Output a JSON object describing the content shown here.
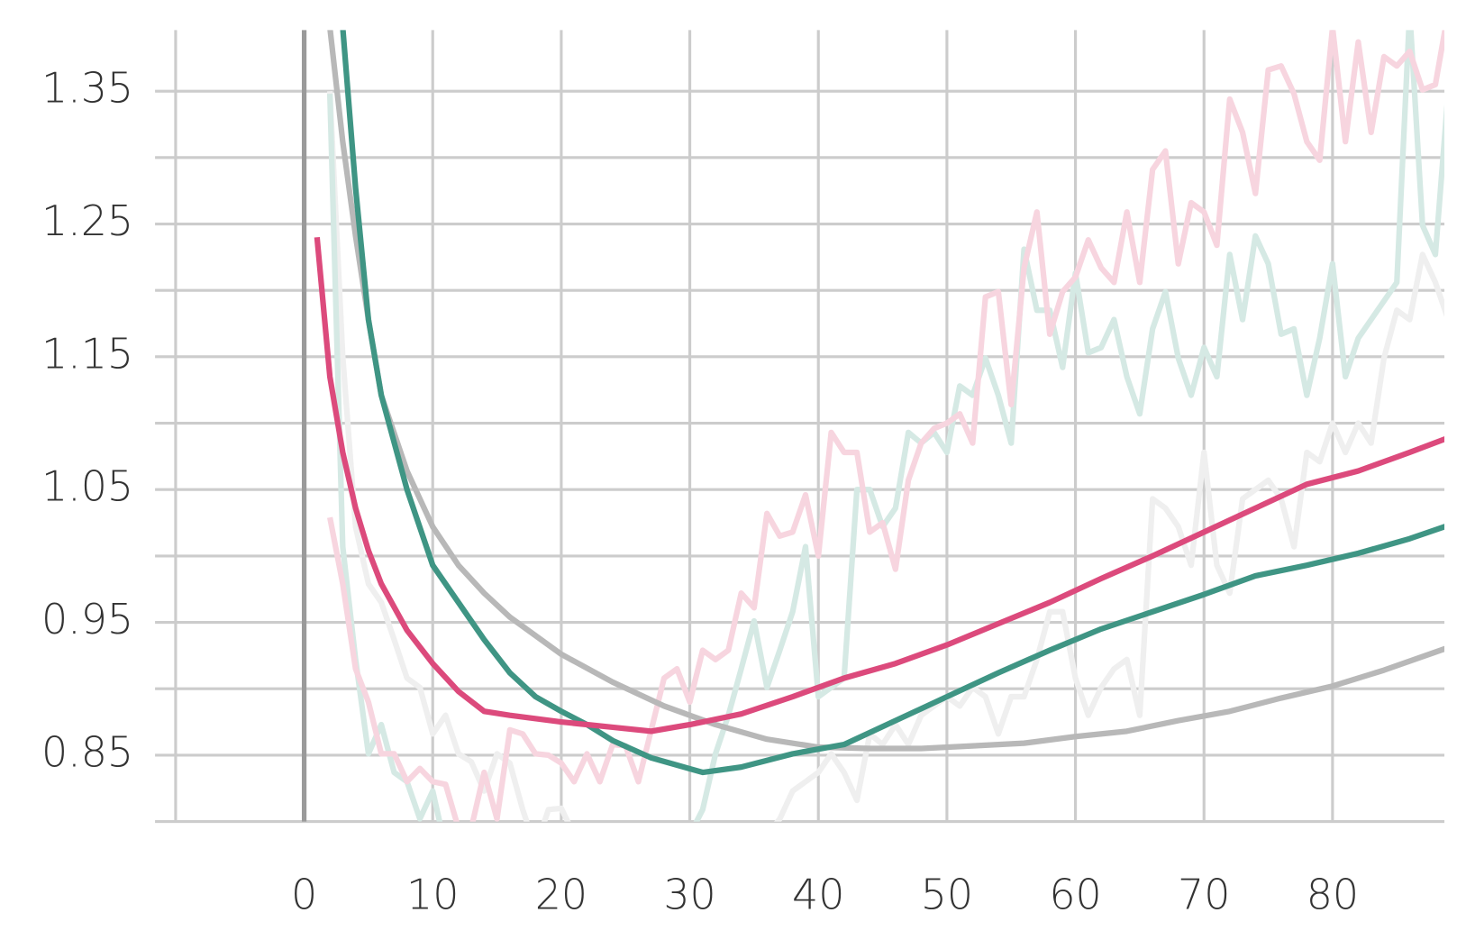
{
  "chart_data": {
    "type": "line",
    "xlim": [
      -11.6,
      88.7
    ],
    "ylim": [
      0.8,
      1.396
    ],
    "xticks": [
      0,
      10,
      20,
      30,
      40,
      50,
      60,
      70,
      80
    ],
    "xticks_minor": [
      -10
    ],
    "yticks": [
      0.85,
      0.95,
      1.05,
      1.15,
      1.25,
      1.35
    ],
    "yticks_minor": [
      0.8,
      0.9,
      1.0,
      1.1,
      1.2,
      1.3
    ],
    "grid": true,
    "zero_line": true,
    "series": [
      {
        "color": "#efefef",
        "x": [
          2,
          3,
          4,
          5,
          6,
          7,
          8,
          9,
          10,
          11,
          12,
          13,
          14,
          15,
          16,
          17,
          18,
          19,
          20,
          21,
          22,
          23,
          24,
          25,
          26,
          27,
          28,
          29,
          30,
          31,
          32,
          33,
          34,
          35,
          36,
          37,
          38,
          39,
          40,
          41,
          42,
          43,
          44,
          45,
          46,
          47,
          48,
          49,
          50,
          51,
          52,
          53,
          54,
          55,
          56,
          57,
          58,
          59,
          60,
          61,
          62,
          63,
          64,
          65,
          66,
          67,
          68,
          69,
          70,
          71,
          72,
          73,
          74,
          75,
          76,
          77,
          78,
          79,
          80,
          81,
          82,
          83,
          84,
          85,
          86,
          87,
          88,
          89
        ],
        "values": [
          1.35,
          1.15,
          1.022,
          0.979,
          0.965,
          0.937,
          0.908,
          0.901,
          0.866,
          0.88,
          0.851,
          0.845,
          0.823,
          0.851,
          0.844,
          0.809,
          0.78,
          0.809,
          0.81,
          0.79,
          0.78,
          0.77,
          0.78,
          0.77,
          0.76,
          0.79,
          0.77,
          0.76,
          0.77,
          0.76,
          0.77,
          0.76,
          0.77,
          0.78,
          0.79,
          0.802,
          0.823,
          0.83,
          0.837,
          0.851,
          0.837,
          0.816,
          0.866,
          0.858,
          0.873,
          0.858,
          0.88,
          0.887,
          0.894,
          0.887,
          0.901,
          0.894,
          0.866,
          0.894,
          0.894,
          0.922,
          0.958,
          0.958,
          0.908,
          0.88,
          0.901,
          0.915,
          0.922,
          0.88,
          1.043,
          1.036,
          1.022,
          0.993,
          1.078,
          0.993,
          0.972,
          1.043,
          1.05,
          1.057,
          1.043,
          1.007,
          1.078,
          1.071,
          1.1,
          1.078,
          1.1,
          1.085,
          1.149,
          1.185,
          1.178,
          1.227,
          1.206,
          1.178
        ]
      },
      {
        "color": "#d5e9e4",
        "x": [
          2,
          3,
          4,
          5,
          6,
          7,
          8,
          9,
          10,
          11,
          12,
          13,
          14,
          15,
          16,
          17,
          18,
          19,
          20,
          21,
          22,
          23,
          24,
          25,
          26,
          27,
          28,
          29,
          30,
          31,
          32,
          33,
          34,
          35,
          36,
          37,
          38,
          39,
          40,
          41,
          42,
          43,
          44,
          45,
          46,
          47,
          48,
          49,
          50,
          51,
          52,
          53,
          54,
          55,
          56,
          57,
          58,
          59,
          60,
          61,
          62,
          63,
          64,
          65,
          66,
          67,
          68,
          69,
          70,
          71,
          72,
          73,
          74,
          75,
          76,
          77,
          78,
          79,
          80,
          81,
          82,
          83,
          84,
          85,
          86,
          87,
          88,
          89
        ],
        "values": [
          1.348,
          1.007,
          0.922,
          0.851,
          0.873,
          0.837,
          0.83,
          0.802,
          0.823,
          0.78,
          0.77,
          0.76,
          0.77,
          0.75,
          0.76,
          0.77,
          0.75,
          0.76,
          0.77,
          0.76,
          0.75,
          0.77,
          0.76,
          0.77,
          0.75,
          0.76,
          0.78,
          0.77,
          0.79,
          0.809,
          0.851,
          0.88,
          0.915,
          0.951,
          0.901,
          0.929,
          0.958,
          1.007,
          0.894,
          0.901,
          0.908,
          1.05,
          1.05,
          1.022,
          1.036,
          1.093,
          1.085,
          1.093,
          1.078,
          1.128,
          1.121,
          1.149,
          1.121,
          1.085,
          1.231,
          1.185,
          1.185,
          1.142,
          1.213,
          1.153,
          1.157,
          1.178,
          1.135,
          1.107,
          1.171,
          1.199,
          1.149,
          1.121,
          1.157,
          1.135,
          1.227,
          1.178,
          1.241,
          1.22,
          1.167,
          1.171,
          1.121,
          1.164,
          1.22,
          1.135,
          1.164,
          1.178,
          1.192,
          1.206,
          1.41,
          1.249,
          1.227,
          1.35
        ]
      },
      {
        "color": "#f7d5df",
        "x": [
          2,
          3,
          4,
          5,
          6,
          7,
          8,
          9,
          10,
          11,
          12,
          13,
          14,
          15,
          16,
          17,
          18,
          19,
          20,
          21,
          22,
          23,
          24,
          25,
          26,
          27,
          28,
          29,
          30,
          31,
          32,
          33,
          34,
          35,
          36,
          37,
          38,
          39,
          40,
          41,
          42,
          43,
          44,
          45,
          46,
          47,
          48,
          49,
          50,
          51,
          52,
          53,
          54,
          55,
          56,
          57,
          58,
          59,
          60,
          61,
          62,
          63,
          64,
          65,
          66,
          67,
          68,
          69,
          70,
          71,
          72,
          73,
          74,
          75,
          76,
          77,
          78,
          79,
          80,
          81,
          82,
          83,
          84,
          85,
          86,
          87,
          88,
          89
        ],
        "values": [
          1.029,
          0.979,
          0.915,
          0.89,
          0.851,
          0.851,
          0.83,
          0.84,
          0.83,
          0.828,
          0.795,
          0.795,
          0.837,
          0.802,
          0.869,
          0.866,
          0.851,
          0.85,
          0.844,
          0.83,
          0.851,
          0.83,
          0.858,
          0.857,
          0.83,
          0.869,
          0.908,
          0.915,
          0.89,
          0.929,
          0.922,
          0.929,
          0.972,
          0.961,
          1.032,
          1.015,
          1.018,
          1.046,
          1.0,
          1.093,
          1.078,
          1.078,
          1.018,
          1.025,
          0.99,
          1.057,
          1.085,
          1.096,
          1.1,
          1.107,
          1.085,
          1.195,
          1.199,
          1.114,
          1.217,
          1.259,
          1.167,
          1.199,
          1.21,
          1.238,
          1.217,
          1.206,
          1.259,
          1.206,
          1.291,
          1.305,
          1.22,
          1.266,
          1.259,
          1.234,
          1.344,
          1.319,
          1.273,
          1.366,
          1.369,
          1.348,
          1.312,
          1.298,
          1.398,
          1.312,
          1.387,
          1.319,
          1.376,
          1.369,
          1.38,
          1.351,
          1.355,
          1.41
        ]
      },
      {
        "color": "#b8b8b8",
        "x": [
          2,
          3,
          4,
          5,
          6,
          8,
          10,
          12,
          14,
          16,
          18,
          20,
          24,
          28,
          32,
          36,
          40,
          44,
          48,
          52,
          56,
          60,
          64,
          68,
          72,
          76,
          80,
          84,
          89
        ],
        "values": [
          1.398,
          1.312,
          1.241,
          1.178,
          1.121,
          1.064,
          1.022,
          0.993,
          0.972,
          0.954,
          0.94,
          0.926,
          0.905,
          0.887,
          0.873,
          0.862,
          0.856,
          0.855,
          0.855,
          0.857,
          0.859,
          0.864,
          0.868,
          0.876,
          0.883,
          0.893,
          0.902,
          0.914,
          0.931
        ]
      },
      {
        "color": "#3f9584",
        "x": [
          3,
          4,
          5,
          6,
          8,
          10,
          12,
          14,
          16,
          18,
          20,
          22,
          24,
          27,
          31,
          34,
          38,
          42,
          46,
          50,
          54,
          58,
          62,
          66,
          70,
          74,
          78,
          82,
          86,
          89
        ],
        "values": [
          1.398,
          1.277,
          1.178,
          1.121,
          1.05,
          0.993,
          0.965,
          0.937,
          0.912,
          0.894,
          0.883,
          0.873,
          0.861,
          0.848,
          0.837,
          0.841,
          0.851,
          0.858,
          0.876,
          0.894,
          0.912,
          0.929,
          0.945,
          0.958,
          0.971,
          0.985,
          0.993,
          1.002,
          1.013,
          1.023
        ]
      },
      {
        "color": "#dc4a7c",
        "x": [
          1,
          2,
          3,
          4,
          5,
          6,
          8,
          10,
          12,
          14,
          16,
          20,
          24,
          27,
          30,
          34,
          38,
          42,
          46,
          50,
          54,
          58,
          62,
          66,
          70,
          74,
          78,
          82,
          86,
          89
        ],
        "values": [
          1.24,
          1.135,
          1.078,
          1.036,
          1.004,
          0.979,
          0.944,
          0.919,
          0.898,
          0.883,
          0.88,
          0.875,
          0.871,
          0.868,
          0.873,
          0.881,
          0.894,
          0.908,
          0.919,
          0.933,
          0.949,
          0.965,
          0.983,
          1.0,
          1.018,
          1.036,
          1.054,
          1.064,
          1.078,
          1.089
        ]
      }
    ]
  }
}
